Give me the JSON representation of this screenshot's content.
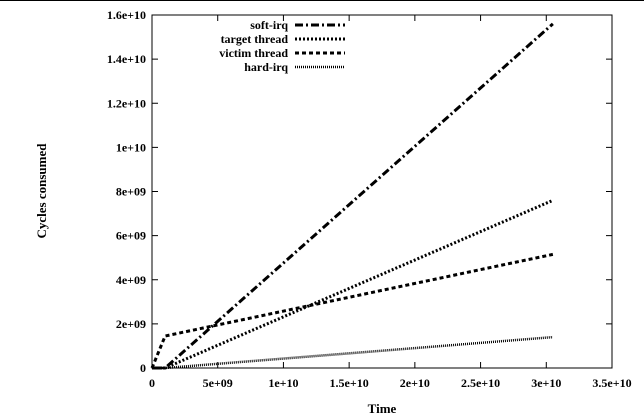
{
  "chart_data": {
    "type": "line",
    "xlabel": "Time",
    "ylabel": "Cycles consumed",
    "xlim": [
      0,
      35000000000
    ],
    "ylim": [
      0,
      16000000000
    ],
    "x_ticks": [
      "0",
      "5e+09",
      "1e+10",
      "1.5e+10",
      "2e+10",
      "2.5e+10",
      "3e+10",
      "3.5e+10"
    ],
    "y_ticks": [
      "0",
      "2e+09",
      "4e+09",
      "6e+09",
      "8e+09",
      "1e+10",
      "1.2e+10",
      "1.4e+10",
      "1.6e+10"
    ],
    "grid": false,
    "legend_position": "top-left",
    "series": [
      {
        "name": "soft-irq",
        "style": "dash-dot",
        "color": "#000000",
        "x": [
          0,
          1000000000,
          30500000000
        ],
        "y": [
          0,
          0,
          15600000000
        ]
      },
      {
        "name": "target thread",
        "style": "dotted",
        "color": "#000000",
        "x": [
          0,
          1000000000,
          30500000000
        ],
        "y": [
          0,
          0,
          7600000000
        ]
      },
      {
        "name": "victim thread",
        "style": "dashed",
        "color": "#000000",
        "x": [
          0,
          1000000000,
          30500000000
        ],
        "y": [
          0,
          1450000000,
          5150000000
        ]
      },
      {
        "name": "hard-irq",
        "style": "fine-dotted",
        "color": "#000000",
        "x": [
          0,
          1000000000,
          30500000000
        ],
        "y": [
          0,
          0,
          1400000000
        ]
      }
    ]
  }
}
